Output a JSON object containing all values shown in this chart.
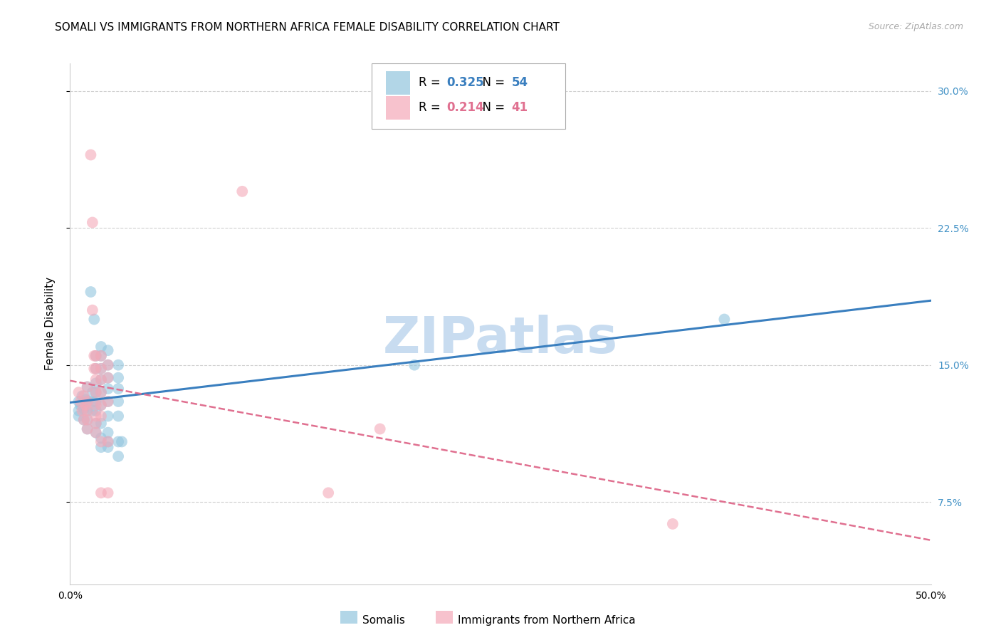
{
  "title": "SOMALI VS IMMIGRANTS FROM NORTHERN AFRICA FEMALE DISABILITY CORRELATION CHART",
  "source": "Source: ZipAtlas.com",
  "ylabel": "Female Disability",
  "xlim": [
    0.0,
    0.5
  ],
  "ylim": [
    0.03,
    0.315
  ],
  "yticks": [
    0.075,
    0.15,
    0.225,
    0.3
  ],
  "ytick_labels": [
    "7.5%",
    "15.0%",
    "22.5%",
    "30.0%"
  ],
  "xticks": [
    0.0,
    0.1,
    0.2,
    0.3,
    0.4,
    0.5
  ],
  "xtick_labels": [
    "0.0%",
    "",
    "",
    "",
    "",
    "50.0%"
  ],
  "somali_color": "#92c5de",
  "northern_africa_color": "#f4a9b8",
  "somali_R": 0.325,
  "somali_N": 54,
  "northern_africa_R": 0.214,
  "northern_africa_N": 41,
  "watermark": "ZIPatlas",
  "background_color": "#ffffff",
  "grid_color": "#d0d0d0",
  "somali_scatter": [
    [
      0.005,
      0.13
    ],
    [
      0.005,
      0.125
    ],
    [
      0.005,
      0.122
    ],
    [
      0.006,
      0.128
    ],
    [
      0.007,
      0.133
    ],
    [
      0.008,
      0.126
    ],
    [
      0.008,
      0.12
    ],
    [
      0.009,
      0.131
    ],
    [
      0.01,
      0.138
    ],
    [
      0.01,
      0.13
    ],
    [
      0.01,
      0.125
    ],
    [
      0.01,
      0.12
    ],
    [
      0.01,
      0.115
    ],
    [
      0.012,
      0.19
    ],
    [
      0.013,
      0.135
    ],
    [
      0.013,
      0.13
    ],
    [
      0.013,
      0.125
    ],
    [
      0.014,
      0.175
    ],
    [
      0.015,
      0.155
    ],
    [
      0.015,
      0.148
    ],
    [
      0.015,
      0.14
    ],
    [
      0.015,
      0.135
    ],
    [
      0.015,
      0.13
    ],
    [
      0.015,
      0.125
    ],
    [
      0.015,
      0.118
    ],
    [
      0.015,
      0.113
    ],
    [
      0.018,
      0.16
    ],
    [
      0.018,
      0.155
    ],
    [
      0.018,
      0.148
    ],
    [
      0.018,
      0.142
    ],
    [
      0.018,
      0.135
    ],
    [
      0.018,
      0.128
    ],
    [
      0.018,
      0.118
    ],
    [
      0.018,
      0.11
    ],
    [
      0.018,
      0.105
    ],
    [
      0.022,
      0.158
    ],
    [
      0.022,
      0.15
    ],
    [
      0.022,
      0.143
    ],
    [
      0.022,
      0.137
    ],
    [
      0.022,
      0.13
    ],
    [
      0.022,
      0.122
    ],
    [
      0.022,
      0.113
    ],
    [
      0.022,
      0.108
    ],
    [
      0.022,
      0.105
    ],
    [
      0.028,
      0.15
    ],
    [
      0.028,
      0.143
    ],
    [
      0.028,
      0.137
    ],
    [
      0.028,
      0.13
    ],
    [
      0.028,
      0.122
    ],
    [
      0.028,
      0.108
    ],
    [
      0.028,
      0.1
    ],
    [
      0.03,
      0.108
    ],
    [
      0.2,
      0.15
    ],
    [
      0.38,
      0.175
    ]
  ],
  "northern_africa_scatter": [
    [
      0.005,
      0.135
    ],
    [
      0.006,
      0.13
    ],
    [
      0.007,
      0.125
    ],
    [
      0.008,
      0.133
    ],
    [
      0.008,
      0.12
    ],
    [
      0.009,
      0.128
    ],
    [
      0.01,
      0.138
    ],
    [
      0.01,
      0.13
    ],
    [
      0.01,
      0.125
    ],
    [
      0.01,
      0.12
    ],
    [
      0.01,
      0.115
    ],
    [
      0.012,
      0.265
    ],
    [
      0.013,
      0.228
    ],
    [
      0.013,
      0.18
    ],
    [
      0.014,
      0.155
    ],
    [
      0.014,
      0.148
    ],
    [
      0.015,
      0.155
    ],
    [
      0.015,
      0.148
    ],
    [
      0.015,
      0.142
    ],
    [
      0.015,
      0.135
    ],
    [
      0.015,
      0.128
    ],
    [
      0.015,
      0.122
    ],
    [
      0.015,
      0.118
    ],
    [
      0.015,
      0.113
    ],
    [
      0.018,
      0.155
    ],
    [
      0.018,
      0.148
    ],
    [
      0.018,
      0.142
    ],
    [
      0.018,
      0.135
    ],
    [
      0.018,
      0.128
    ],
    [
      0.018,
      0.122
    ],
    [
      0.018,
      0.108
    ],
    [
      0.018,
      0.08
    ],
    [
      0.022,
      0.15
    ],
    [
      0.022,
      0.143
    ],
    [
      0.022,
      0.13
    ],
    [
      0.022,
      0.108
    ],
    [
      0.022,
      0.08
    ],
    [
      0.1,
      0.245
    ],
    [
      0.15,
      0.08
    ],
    [
      0.18,
      0.115
    ],
    [
      0.35,
      0.063
    ]
  ],
  "somali_line_color": "#3a7fbf",
  "northern_africa_line_color": "#e07090",
  "title_fontsize": 11,
  "axis_label_fontsize": 11,
  "tick_fontsize": 10,
  "legend_fontsize": 12,
  "watermark_fontsize": 52,
  "watermark_color": "#c8dcf0",
  "source_fontsize": 9,
  "right_ytick_color": "#4292c6"
}
